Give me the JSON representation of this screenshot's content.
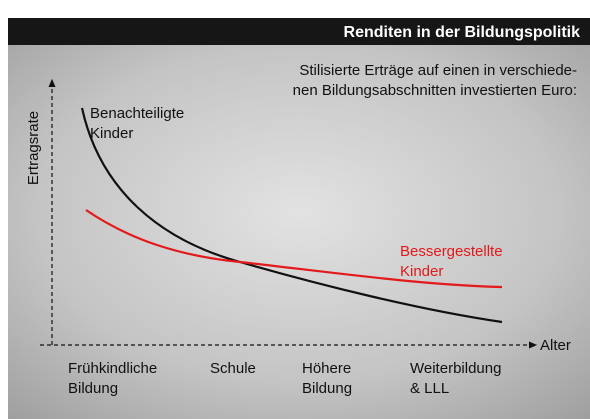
{
  "header": {
    "title": "Renditen in der Bildungspolitik"
  },
  "chart": {
    "subtitle": [
      "Stilisierte Erträge auf einen in verschiede-",
      "nen Bildungsabschnitten investierten Euro:"
    ],
    "y_label": "Ertragsrate",
    "x_label": "Alter",
    "curves": [
      {
        "label": [
          "Benachteiligte",
          "Kinder"
        ]
      },
      {
        "label": [
          "Bessergestellte",
          "Kinder"
        ]
      }
    ],
    "stages": [
      [
        "Frühkindliche",
        "Bildung"
      ],
      [
        "Schule"
      ],
      [
        "Höhere",
        "Bildung"
      ],
      [
        "Weiterbildung",
        "& LLL"
      ]
    ]
  }
}
